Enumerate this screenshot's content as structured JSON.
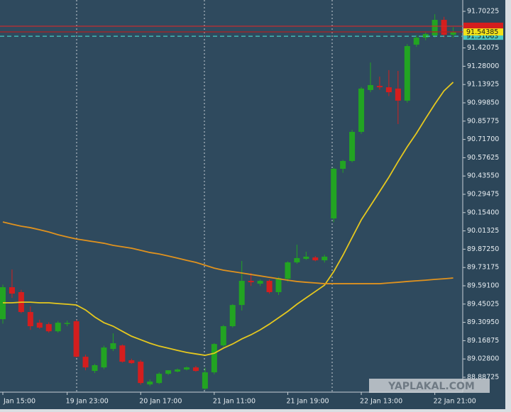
{
  "chart_data": {
    "type": "candlestick",
    "categories": [
      "Jan 15:00",
      null,
      null,
      null,
      null,
      null,
      null,
      "19 Jan 23:00",
      null,
      null,
      null,
      null,
      null,
      null,
      null,
      "20 Jan 17:00",
      null,
      null,
      null,
      null,
      null,
      null,
      null,
      "21 Jan 11:00",
      null,
      null,
      null,
      null,
      null,
      null,
      null,
      "21 Jan 19:00",
      null,
      null,
      null,
      null,
      null,
      null,
      null,
      "22 Jan 13:00",
      null,
      null,
      null,
      null,
      null,
      null,
      null,
      "22 Jan 21:00",
      null,
      null
    ],
    "open": [
      89.334,
      89.58,
      89.542,
      89.389,
      89.307,
      89.296,
      89.241,
      89.302,
      89.318,
      89.045,
      88.936,
      88.963,
      89.105,
      89.132,
      89.018,
      89.007,
      88.832,
      88.843,
      88.914,
      88.931,
      88.947,
      88.963,
      88.8,
      88.925,
      89.132,
      89.28,
      89.443,
      89.629,
      89.607,
      89.629,
      89.542,
      89.645,
      89.771,
      89.798,
      89.809,
      89.787,
      90.109,
      90.491,
      90.551,
      90.775,
      91.097,
      91.129,
      91.118,
      91.108,
      91.015,
      91.446,
      91.5,
      91.517,
      91.637,
      91.522
    ],
    "high": [
      89.6,
      89.716,
      89.56,
      89.432,
      89.33,
      89.31,
      89.32,
      89.323,
      89.33,
      89.061,
      88.99,
      89.13,
      89.225,
      89.14,
      89.03,
      89.02,
      88.87,
      88.925,
      88.94,
      88.955,
      88.97,
      88.975,
      88.96,
      89.15,
      89.29,
      89.45,
      89.782,
      89.689,
      89.64,
      89.64,
      89.66,
      89.78,
      89.907,
      89.853,
      89.82,
      89.83,
      90.5,
      90.56,
      90.79,
      91.12,
      91.309,
      91.2,
      91.25,
      91.244,
      91.45,
      91.52,
      91.54,
      91.68,
      91.66,
      91.58
    ],
    "low": [
      89.3,
      89.498,
      89.38,
      89.252,
      89.26,
      89.23,
      89.23,
      89.28,
      89.04,
      88.941,
      88.92,
      88.95,
      89.089,
      89.0,
      88.99,
      88.83,
      88.82,
      88.835,
      88.905,
      88.925,
      88.94,
      88.93,
      88.79,
      88.91,
      89.12,
      89.27,
      89.4,
      89.59,
      89.59,
      89.53,
      89.52,
      89.62,
      89.76,
      89.79,
      89.78,
      89.77,
      90.08,
      90.46,
      90.54,
      90.76,
      91.08,
      91.1,
      91.05,
      90.835,
      91.0,
      91.43,
      91.48,
      91.5,
      91.5,
      91.5
    ],
    "close": [
      89.58,
      89.531,
      89.389,
      89.28,
      89.269,
      89.241,
      89.307,
      89.305,
      89.045,
      88.963,
      88.98,
      89.116,
      89.149,
      89.007,
      88.996,
      88.843,
      88.854,
      88.914,
      88.941,
      88.947,
      88.963,
      88.936,
      88.925,
      89.143,
      89.28,
      89.443,
      89.629,
      89.618,
      89.629,
      89.542,
      89.651,
      89.771,
      89.804,
      89.815,
      89.787,
      89.815,
      90.491,
      90.551,
      90.775,
      91.108,
      91.135,
      91.118,
      91.08,
      91.015,
      91.435,
      91.5,
      91.528,
      91.637,
      91.522,
      91.544
    ],
    "up_color": "#22a422",
    "down_color": "#d41e1e",
    "series": [
      {
        "color": "#e6c81e",
        "values": [
          89.46,
          89.46,
          89.465,
          89.465,
          89.46,
          89.46,
          89.454,
          89.449,
          89.443,
          89.405,
          89.351,
          89.307,
          89.28,
          89.241,
          89.203,
          89.176,
          89.149,
          89.127,
          89.111,
          89.094,
          89.078,
          89.067,
          89.056,
          89.072,
          89.111,
          89.143,
          89.182,
          89.214,
          89.252,
          89.296,
          89.345,
          89.394,
          89.449,
          89.498,
          89.547,
          89.596,
          89.7,
          89.825,
          89.962,
          90.098,
          90.207,
          90.316,
          90.426,
          90.546,
          90.66,
          90.764,
          90.878,
          90.988,
          91.091,
          91.157
        ]
      },
      {
        "color": "#e0921e",
        "values": [
          90.082,
          90.065,
          90.049,
          90.038,
          90.022,
          90.005,
          89.984,
          89.967,
          89.951,
          89.94,
          89.929,
          89.918,
          89.902,
          89.891,
          89.88,
          89.864,
          89.847,
          89.836,
          89.82,
          89.804,
          89.787,
          89.771,
          89.749,
          89.727,
          89.711,
          89.7,
          89.689,
          89.678,
          89.667,
          89.656,
          89.645,
          89.634,
          89.624,
          89.618,
          89.613,
          89.607,
          89.607,
          89.607,
          89.607,
          89.607,
          89.607,
          89.607,
          89.613,
          89.618,
          89.624,
          89.629,
          89.634,
          89.64,
          89.645,
          89.651
        ]
      }
    ],
    "price_lines": [
      {
        "value": 91.51063,
        "line_color": "#49c9c3",
        "tag_color": "#49c9c3",
        "dashed": true,
        "show_label": true
      },
      {
        "value": 91.588,
        "line_color": "#d42a2a",
        "tag_color": "#d41e1e",
        "dashed": false,
        "show_label": false
      },
      {
        "value": 91.54385,
        "line_color": "#b52020",
        "tag_color": "#f2e21a",
        "dashed": false,
        "show_label": true
      }
    ],
    "ylim": [
      88.7727,
      91.7895
    ],
    "yticks": [
      91.70225,
      91.42075,
      {
        "value": 91.28,
        "label": "91.28000"
      },
      91.13925,
      {
        "value": 90.9985,
        "label": "90.99850"
      },
      90.85775,
      {
        "value": 90.717,
        "label": "90.71700"
      },
      90.57625,
      {
        "value": 90.4355,
        "label": "90.43550"
      },
      90.29475,
      {
        "value": 90.154,
        "label": "90.15400"
      },
      90.01325,
      {
        "value": 89.8725,
        "label": "89.87250"
      },
      89.73175,
      {
        "value": 89.591,
        "label": "89.59100"
      },
      89.45025,
      {
        "value": 89.3095,
        "label": "89.30950"
      },
      89.16875,
      {
        "value": 89.028,
        "label": "89.02800"
      },
      88.88725
    ],
    "watermark": "YAPLAKAL.COM"
  }
}
